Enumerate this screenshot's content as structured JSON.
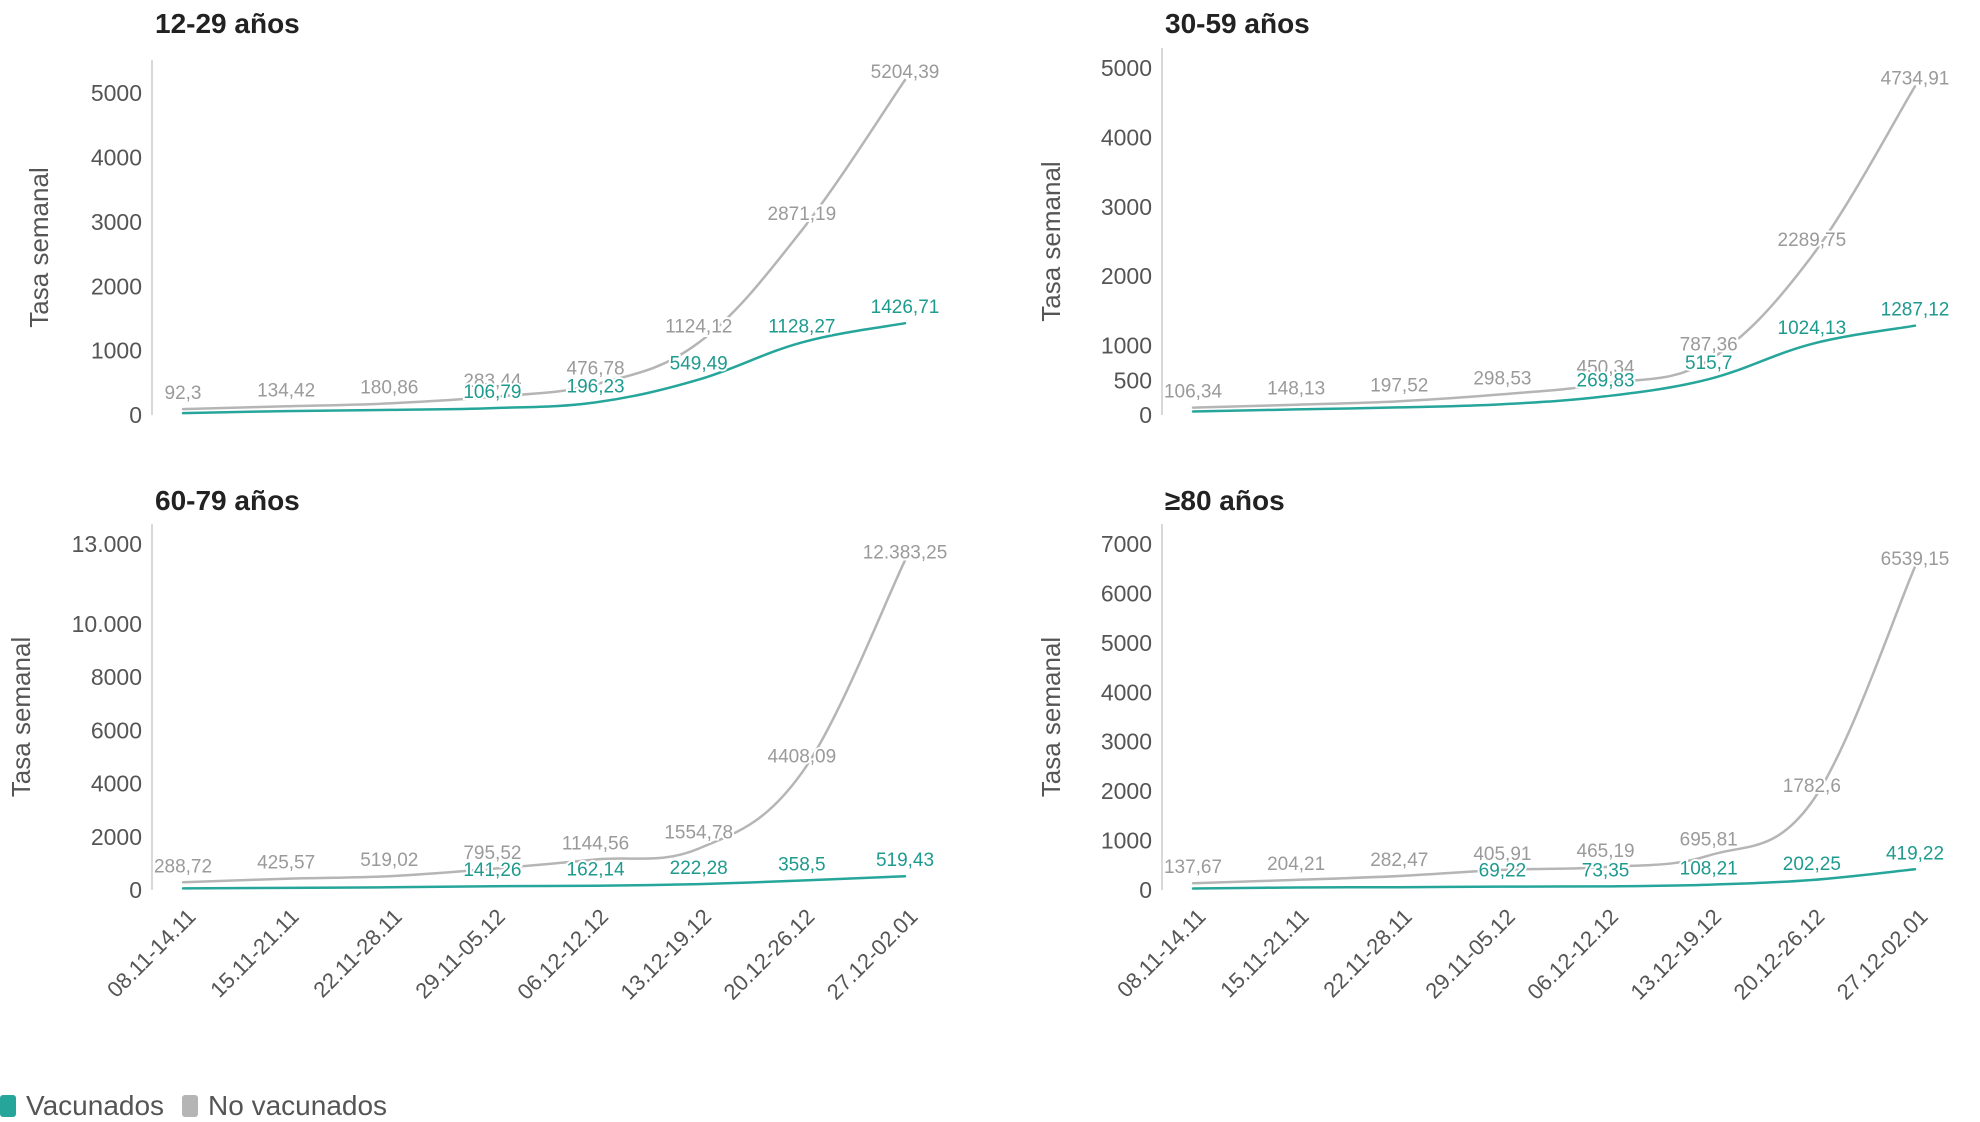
{
  "colors": {
    "vacunados": "#26a69a",
    "no_vacunados": "#b5b5b5"
  },
  "legend": [
    {
      "key": "vacunados",
      "label": "Vacunados",
      "color": "#26a69a"
    },
    {
      "key": "no_vacunados",
      "label": "No vacunados",
      "color": "#b5b5b5"
    }
  ],
  "chart_data": [
    {
      "type": "line",
      "title": "12-29 años",
      "ylabel": "Tasa semanal",
      "categories": [
        "08.11-14.11",
        "15.11-21.11",
        "22.11-28.11",
        "29.11-05.12",
        "06.12-12.12",
        "13.12-19.12",
        "20.12-26.12",
        "27.12-02.01"
      ],
      "ylim": [
        0,
        5204.39
      ],
      "yticks": [
        0,
        1000,
        2000,
        3000,
        4000,
        5000
      ],
      "ytick_labels": [
        "0",
        "1000",
        "2000",
        "3000",
        "4000",
        "5000"
      ],
      "series": [
        {
          "name": "No vacunados",
          "values": [
            92.3,
            134.42,
            180.86,
            283.44,
            476.78,
            1124.12,
            2871.19,
            5204.39
          ],
          "labels": [
            "92,3",
            "134,42",
            "180,86",
            "283,44",
            "476,78",
            "1124,12",
            "2871,19",
            "5204,39"
          ]
        },
        {
          "name": "Vacunados",
          "values": [
            30,
            60,
            80,
            106.79,
            196.23,
            549.49,
            1128.27,
            1426.71
          ],
          "labels": [
            "",
            "",
            "",
            "106,79",
            "196,23",
            "549,49",
            "1128,27",
            "1426,71"
          ]
        }
      ]
    },
    {
      "type": "line",
      "title": "30-59 años",
      "ylabel": "Tasa semanal",
      "categories": [
        "08.11-14.11",
        "15.11-21.11",
        "22.11-28.11",
        "29.11-05.12",
        "06.12-12.12",
        "13.12-19.12",
        "20.12-26.12",
        "27.12-02.01"
      ],
      "ylim": [
        0,
        5000
      ],
      "yticks": [
        0,
        500,
        1000,
        2000,
        3000,
        4000,
        5000
      ],
      "ytick_labels": [
        "0",
        "500",
        "1000",
        "2000",
        "3000",
        "4000",
        "5000"
      ],
      "series": [
        {
          "name": "No vacunados",
          "values": [
            106.34,
            148.13,
            197.52,
            298.53,
            450.34,
            787.36,
            2289.75,
            4734.91
          ],
          "labels": [
            "106,34",
            "148,13",
            "197,52",
            "298,53",
            "450,34",
            "787,36",
            "2289,75",
            "4734,91"
          ]
        },
        {
          "name": "Vacunados",
          "values": [
            50,
            80,
            110,
            155,
            269.83,
            515.7,
            1024.13,
            1287.12
          ],
          "labels": [
            "",
            "",
            "",
            "",
            "269,83",
            "515,7",
            "1024,13",
            "1287,12"
          ]
        }
      ]
    },
    {
      "type": "line",
      "title": "60-79 años",
      "ylabel": "Tasa semanal",
      "categories": [
        "08.11-14.11",
        "15.11-21.11",
        "22.11-28.11",
        "29.11-05.12",
        "06.12-12.12",
        "13.12-19.12",
        "20.12-26.12",
        "27.12-02.01"
      ],
      "ylim": [
        0,
        13000
      ],
      "yticks": [
        0,
        2000,
        4000,
        6000,
        8000,
        10000,
        13000
      ],
      "ytick_labels": [
        "0",
        "2000",
        "4000",
        "6000",
        "8000",
        "10.000",
        "13.000"
      ],
      "series": [
        {
          "name": "No vacunados",
          "values": [
            288.72,
            425.57,
            519.02,
            795.52,
            1144.56,
            1554.78,
            4408.09,
            12383.25
          ],
          "labels": [
            "288,72",
            "425,57",
            "519,02",
            "795,52",
            "1144,56",
            "1554,78",
            "4408,09",
            "12.383,25"
          ]
        },
        {
          "name": "Vacunados",
          "values": [
            60,
            80.28,
            101.55,
            141.26,
            162.14,
            222.28,
            358.5,
            519.43
          ],
          "labels": [
            "",
            "",
            "",
            "141,26",
            "162,14",
            "222,28",
            "358,5",
            "519,43"
          ]
        }
      ]
    },
    {
      "type": "line",
      "title": "≥80 años",
      "ylabel": "Tasa semanal",
      "categories": [
        "08.11-14.11",
        "15.11-21.11",
        "22.11-28.11",
        "29.11-05.12",
        "06.12-12.12",
        "13.12-19.12",
        "20.12-26.12",
        "27.12-02.01"
      ],
      "ylim": [
        0,
        7000
      ],
      "yticks": [
        0,
        1000,
        2000,
        3000,
        4000,
        5000,
        6000,
        7000
      ],
      "ytick_labels": [
        "0",
        "1000",
        "2000",
        "3000",
        "4000",
        "5000",
        "6000",
        "7000"
      ],
      "series": [
        {
          "name": "No vacunados",
          "values": [
            137.67,
            204.21,
            282.47,
            405.91,
            465.19,
            695.81,
            1782.6,
            6539.15
          ],
          "labels": [
            "137,67",
            "204,21",
            "282,47",
            "405,91",
            "465,19",
            "695,81",
            "1782,6",
            "6539,15"
          ]
        },
        {
          "name": "Vacunados",
          "values": [
            30,
            51,
            56,
            69.22,
            73.35,
            108.21,
            202.25,
            419.22
          ],
          "labels": [
            "",
            "",
            "",
            "69,22",
            "73,35",
            "108,21",
            "202,25",
            "419,22"
          ]
        }
      ]
    }
  ]
}
